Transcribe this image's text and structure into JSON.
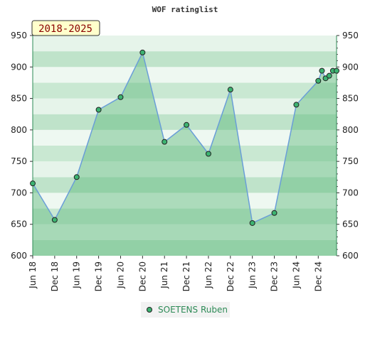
{
  "chart_data": {
    "type": "area",
    "title": "WOF ratinglist",
    "range_label": "2018-2025",
    "ylim": [
      600,
      950
    ],
    "y_ticks": [
      600,
      650,
      700,
      750,
      800,
      850,
      900,
      950
    ],
    "x_tick_labels": [
      "Jun 18",
      "Dec 18",
      "Jun 19",
      "Dec 19",
      "Jun 20",
      "Dec 20",
      "Jun 21",
      "Dec 21",
      "Jun 22",
      "Dec 22",
      "Jun 23",
      "Dec 23",
      "Jun 24",
      "Dec 24"
    ],
    "series": [
      {
        "name": "SOETENS Ruben",
        "x": [
          "2018-06",
          "2018-12",
          "2019-06",
          "2019-12",
          "2020-06",
          "2020-12",
          "2021-06",
          "2021-12",
          "2022-06",
          "2022-12",
          "2023-06",
          "2023-12",
          "2024-06",
          "2024-12",
          "2025-01",
          "2025-02",
          "2025-03",
          "2025-04",
          "2025-05"
        ],
        "values": [
          715,
          657,
          725,
          832,
          852,
          923,
          781,
          808,
          762,
          864,
          652,
          668,
          840,
          878,
          894,
          882,
          886,
          894,
          894
        ]
      }
    ],
    "legend_position": "bottom-center",
    "grid": "alternating horizontal bands",
    "colors": {
      "line": "#6a9ed8",
      "area": "#5cb87a",
      "marker": "#3cb371",
      "range_box_fill": "#ffffcc",
      "legend_text": "#2e8b57"
    }
  }
}
